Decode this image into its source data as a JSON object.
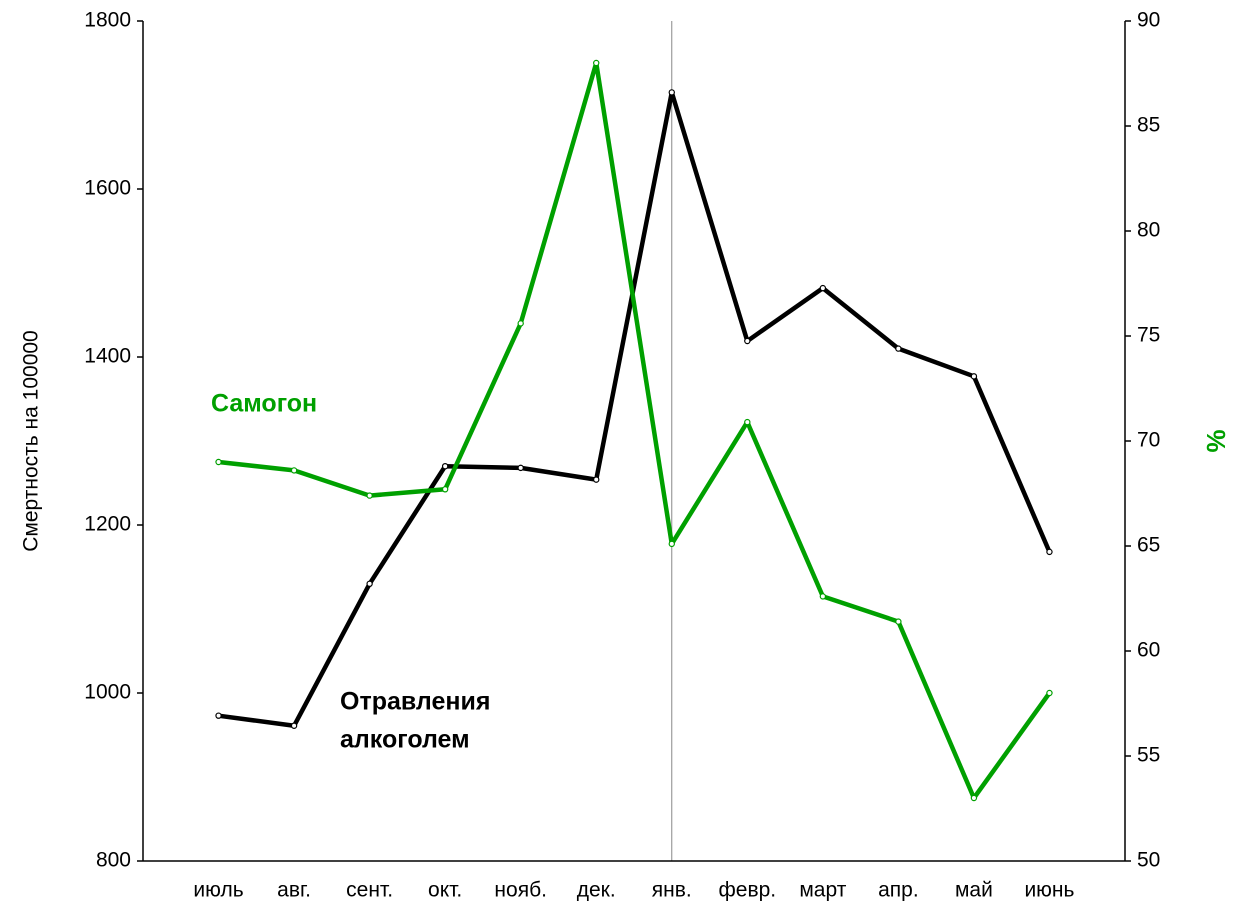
{
  "chart_data": {
    "type": "line",
    "y_label": "Смертность на 100000",
    "y2_label": "%",
    "categories": [
      "июль",
      "авг.",
      "сент.",
      "окт.",
      "нояб.",
      "дек.",
      "янв.",
      "февр.",
      "март",
      "апр.",
      "май",
      "июнь"
    ],
    "series": [
      {
        "name": "Отравления алкоголем",
        "name_lines": [
          "Отравления",
          "алкоголем"
        ],
        "color": "#000000",
        "axis": "y",
        "values": [
          973,
          961,
          1130,
          1270,
          1268,
          1254,
          1715,
          1419,
          1482,
          1410,
          1377,
          1168
        ]
      },
      {
        "name": "Самогон",
        "color": "#00a000",
        "axis": "y2",
        "values": [
          69.0,
          68.6,
          67.4,
          67.7,
          75.6,
          88.0,
          65.1,
          70.9,
          62.6,
          61.4,
          53.0,
          58.0
        ]
      }
    ],
    "vlines": [
      "янв."
    ],
    "ylim": [
      800,
      1800
    ],
    "yticks": [
      800,
      1000,
      1200,
      1400,
      1600,
      1800
    ],
    "y2lim": [
      50,
      90
    ],
    "y2ticks": [
      50,
      55,
      60,
      65,
      70,
      75,
      80,
      85,
      90
    ],
    "y2_label_color": "#00a000"
  }
}
